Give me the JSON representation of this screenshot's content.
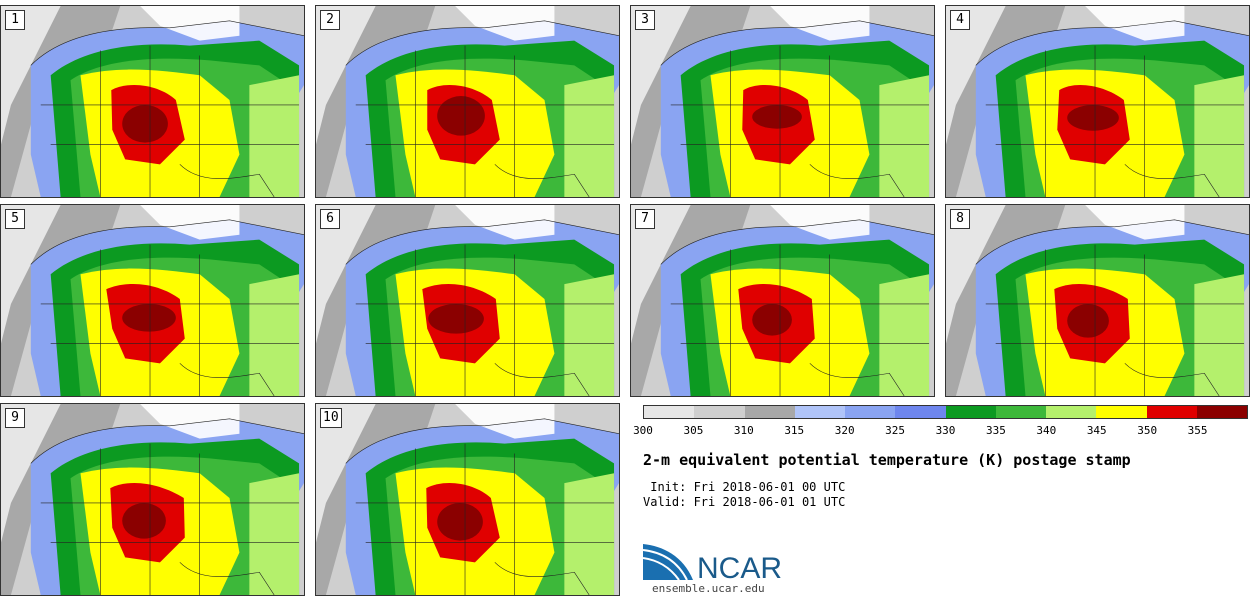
{
  "panels": [
    {
      "label": "1"
    },
    {
      "label": "2"
    },
    {
      "label": "3"
    },
    {
      "label": "4"
    },
    {
      "label": "5"
    },
    {
      "label": "6"
    },
    {
      "label": "7"
    },
    {
      "label": "8"
    },
    {
      "label": "9"
    },
    {
      "label": "10"
    }
  ],
  "colorbar": {
    "colors": [
      "#e6e6e6",
      "#cfcfcf",
      "#a8a8a8",
      "#b0c4f8",
      "#8aa4f2",
      "#6e86ee",
      "#0c9a21",
      "#3db83a",
      "#b4f06c",
      "#ffff00",
      "#e00000",
      "#8b0000"
    ],
    "ticks": [
      "300",
      "305",
      "310",
      "315",
      "320",
      "325",
      "330",
      "335",
      "340",
      "345",
      "350",
      "355"
    ]
  },
  "title": "2-m equivalent potential temperature (K) postage stamp",
  "init": " Init: Fri 2018-06-01 00 UTC",
  "valid": "Valid: Fri 2018-06-01 01 UTC",
  "logo": {
    "text": "NCAR",
    "url": "ensemble.ucar.edu",
    "brand_color": "#1a5a8a"
  }
}
